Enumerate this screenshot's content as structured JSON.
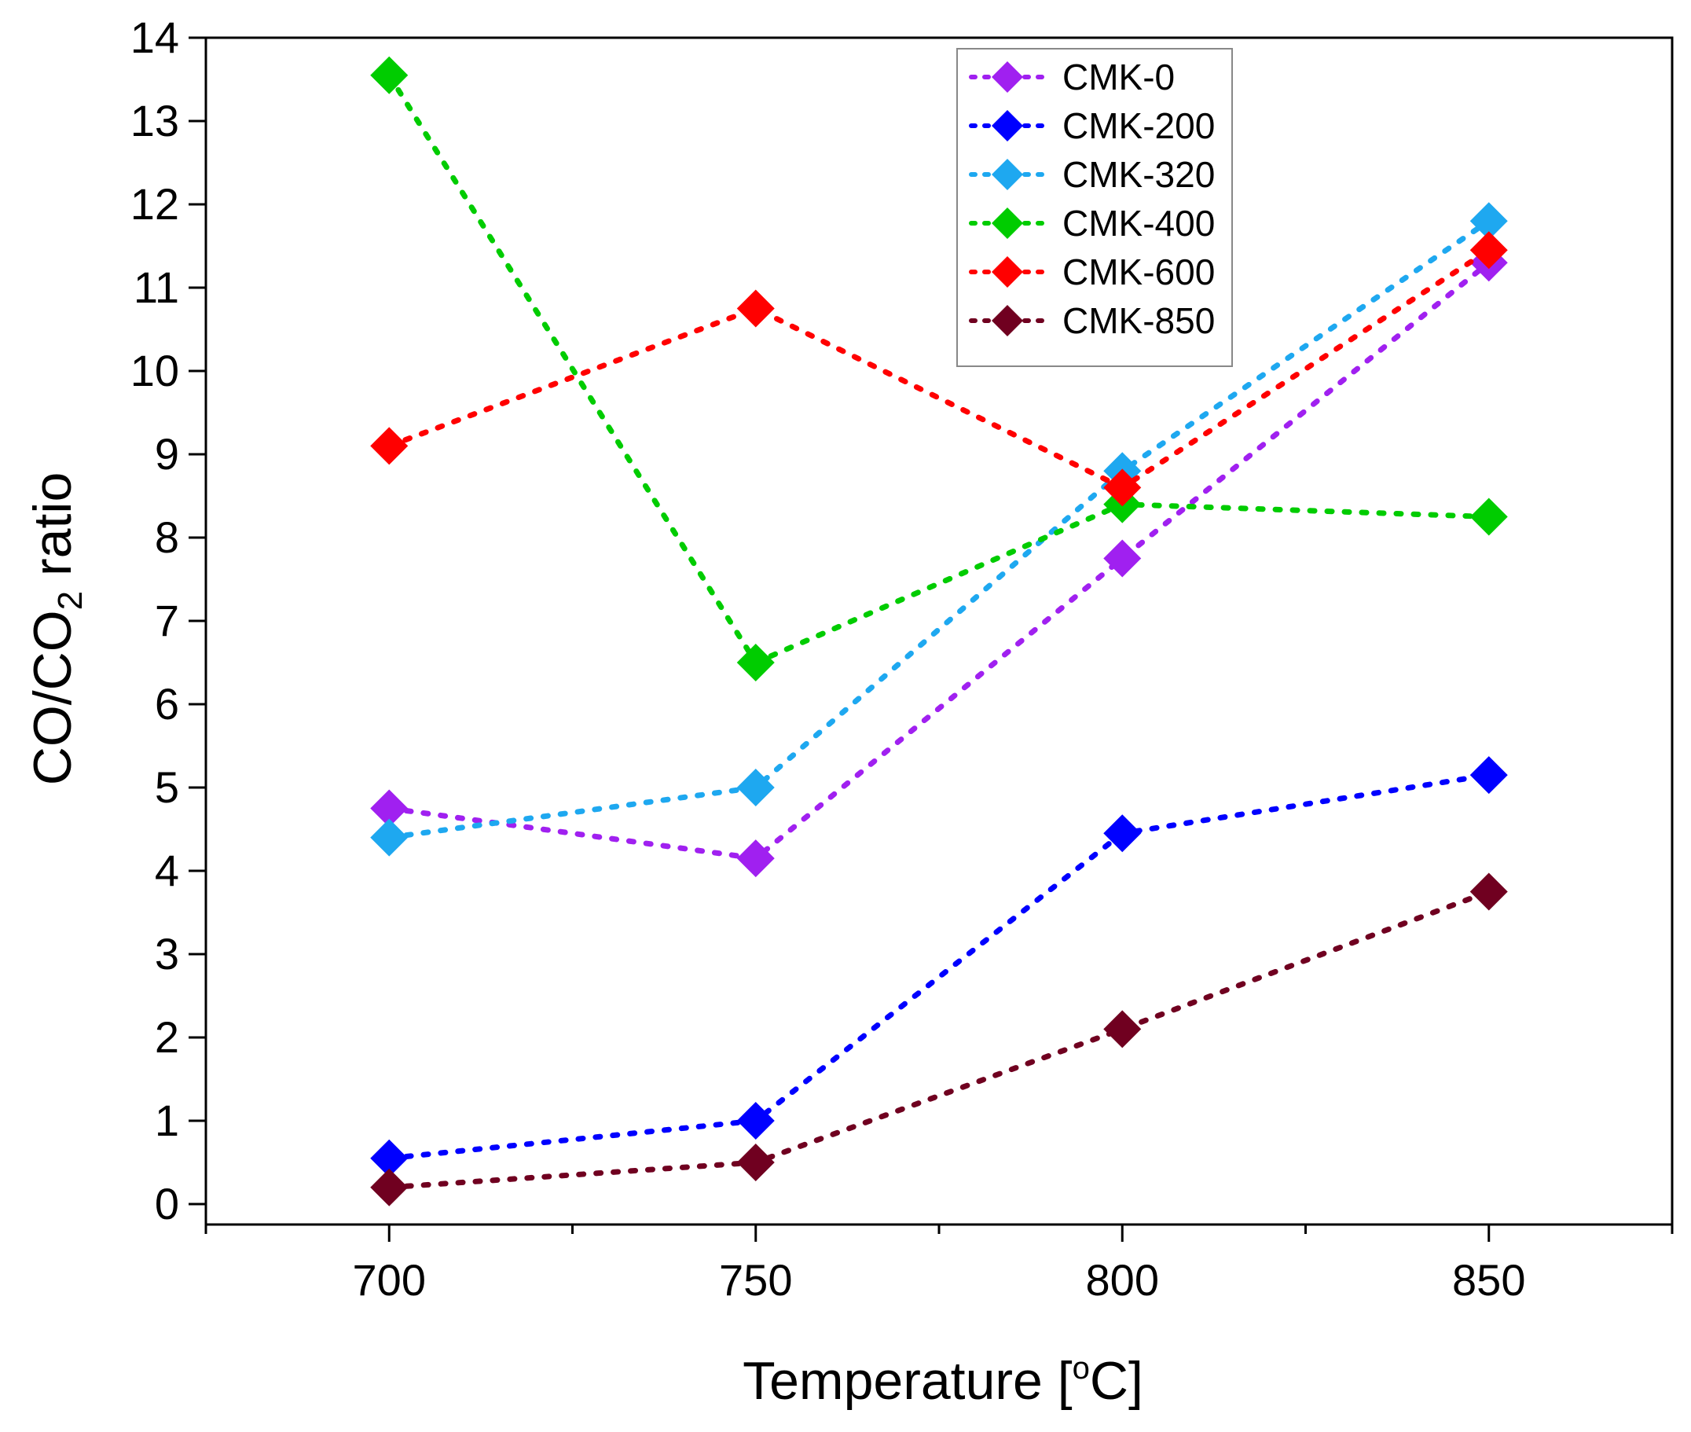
{
  "chart_data": {
    "type": "line",
    "line_style": "dotted",
    "marker": "diamond",
    "xlabel": "Temperature [",
    "xlabel_unit": "C]",
    "xlabel_degree": "o",
    "ylabel_prefix": "CO/CO",
    "ylabel_subscript": "2",
    "ylabel_suffix": " ratio",
    "xlim": [
      675,
      875
    ],
    "ylim": [
      0,
      14
    ],
    "xticks": [
      700,
      750,
      800,
      850
    ],
    "yticks": [
      0,
      1,
      2,
      3,
      4,
      5,
      6,
      7,
      8,
      9,
      10,
      11,
      12,
      13,
      14
    ],
    "legend_position": "top-right",
    "x": [
      700,
      750,
      800,
      850
    ],
    "series": [
      {
        "name": "CMK-0",
        "color": "#a020f0",
        "values": [
          4.75,
          4.15,
          7.75,
          11.3
        ]
      },
      {
        "name": "CMK-200",
        "color": "#0000ff",
        "values": [
          0.55,
          1.0,
          4.45,
          5.15
        ]
      },
      {
        "name": "CMK-320",
        "color": "#1ea8f0",
        "values": [
          4.4,
          5.0,
          8.8,
          11.8
        ]
      },
      {
        "name": "CMK-400",
        "color": "#00cc00",
        "values": [
          13.55,
          6.5,
          8.4,
          8.25
        ]
      },
      {
        "name": "CMK-600",
        "color": "#ff0000",
        "values": [
          9.1,
          10.75,
          8.6,
          11.45
        ]
      },
      {
        "name": "CMK-850",
        "color": "#700020",
        "values": [
          0.2,
          0.5,
          2.1,
          3.75
        ]
      }
    ]
  }
}
